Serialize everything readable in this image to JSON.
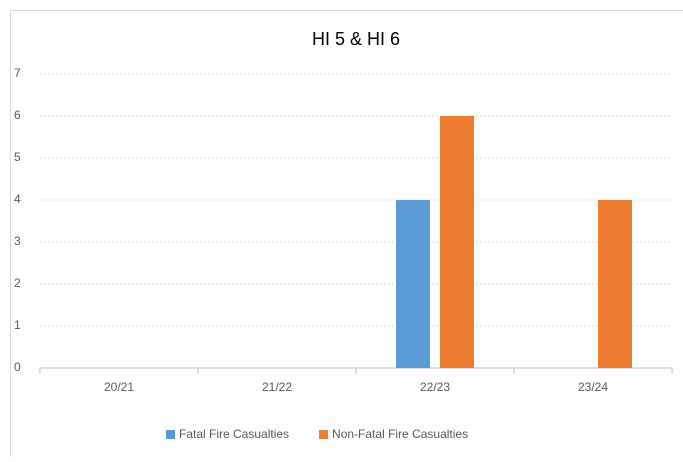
{
  "chart_data": {
    "type": "bar",
    "title": "HI 5 & HI 6",
    "categories": [
      "20/21",
      "21/22",
      "22/23",
      "23/24"
    ],
    "series": [
      {
        "name": "Fatal Fire Casualties",
        "color": "#5b9bd5",
        "values": [
          0,
          0,
          4,
          0
        ]
      },
      {
        "name": "Non-Fatal Fire Casualties",
        "color": "#ed7d31",
        "values": [
          0,
          0,
          6,
          4
        ]
      }
    ],
    "ylim": [
      0,
      7
    ],
    "yticks": [
      0,
      1,
      2,
      3,
      4,
      5,
      6,
      7
    ],
    "grid": true,
    "legend": "bottom"
  }
}
